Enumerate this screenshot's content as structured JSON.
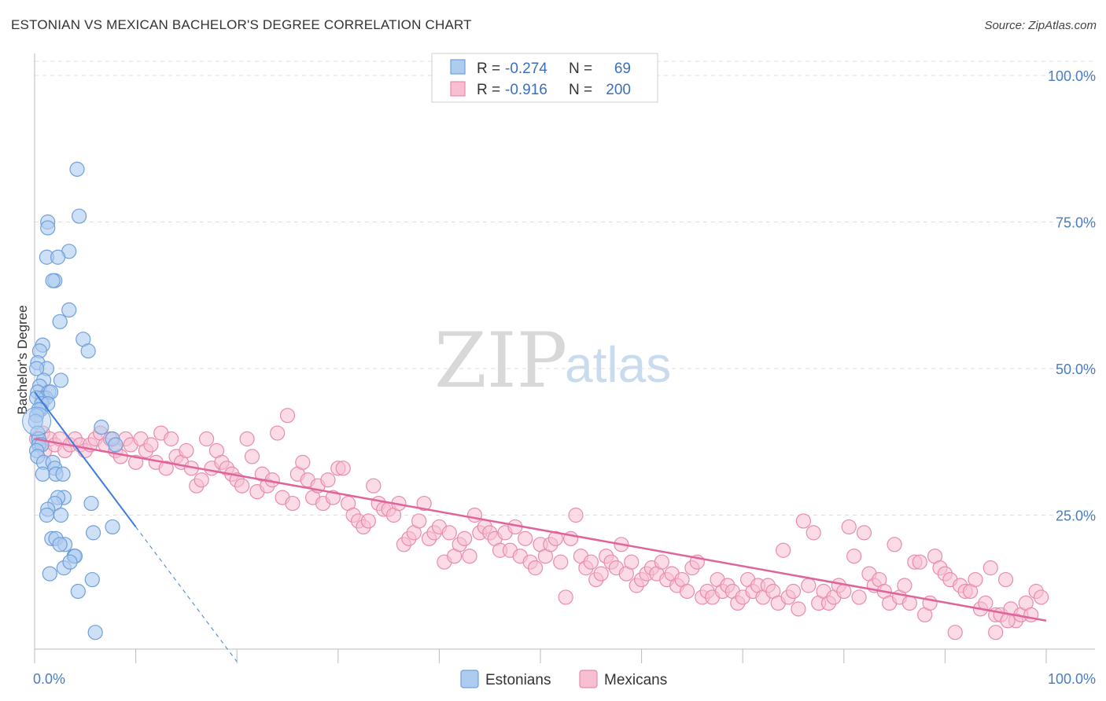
{
  "title": "ESTONIAN VS MEXICAN BACHELOR'S DEGREE CORRELATION CHART",
  "source": "Source: ZipAtlas.com",
  "watermark": {
    "zip": "ZIP",
    "atlas": "atlas"
  },
  "colors": {
    "estonian_fill": "#aecbf0",
    "estonian_stroke": "#6f9fdb",
    "estonian_line": "#3b7dd8",
    "mexican_fill": "#f7bfd1",
    "mexican_stroke": "#e98bab",
    "mexican_line": "#e0649a",
    "grid": "#dddddd"
  },
  "legend": {
    "rows": [
      {
        "r_label": "R = ",
        "r_value": "-0.274",
        "n_label": "N = ",
        "n_value": "69"
      },
      {
        "r_label": "R = ",
        "r_value": "-0.916",
        "n_label": "N = ",
        "n_value": "200"
      }
    ]
  },
  "bottom_legend": {
    "estonians": "Estonians",
    "mexicans": "Mexicans"
  },
  "chart_data": {
    "type": "scatter",
    "title": "ESTONIAN VS MEXICAN BACHELOR'S DEGREE CORRELATION CHART",
    "xlabel": "",
    "ylabel": "Bachelor's Degree",
    "xlim": [
      0,
      100
    ],
    "ylim": [
      0,
      100
    ],
    "x_tick_labels": [
      "0.0%",
      "100.0%"
    ],
    "y_tick_labels": [
      "100.0%",
      "75.0%",
      "50.0%",
      "25.0%"
    ],
    "y_tick_values": [
      100,
      75,
      50,
      25
    ],
    "grid": true,
    "series": [
      {
        "name": "Estonians",
        "R": -0.274,
        "N": 69,
        "trend": {
          "x0": 0,
          "y0": 46,
          "x1": 10,
          "y1": 23,
          "dash_to_x": 20
        },
        "points": [
          [
            4.2,
            84
          ],
          [
            4.4,
            76
          ],
          [
            1.3,
            75
          ],
          [
            1.3,
            74
          ],
          [
            3.4,
            70
          ],
          [
            1.2,
            69
          ],
          [
            2.3,
            69
          ],
          [
            2.0,
            65
          ],
          [
            1.8,
            65
          ],
          [
            3.4,
            60
          ],
          [
            2.5,
            58
          ],
          [
            4.8,
            55
          ],
          [
            5.3,
            53
          ],
          [
            0.8,
            54
          ],
          [
            0.5,
            53
          ],
          [
            0.3,
            51
          ],
          [
            1.2,
            50
          ],
          [
            0.2,
            50
          ],
          [
            0.9,
            48
          ],
          [
            2.6,
            48
          ],
          [
            0.5,
            47
          ],
          [
            0.3,
            46
          ],
          [
            1.4,
            46
          ],
          [
            0.8,
            45
          ],
          [
            1.1,
            45
          ],
          [
            1.6,
            46
          ],
          [
            0.2,
            45
          ],
          [
            0.7,
            44
          ],
          [
            1.3,
            44
          ],
          [
            0.6,
            43
          ],
          [
            0.4,
            43
          ],
          [
            0.2,
            42
          ],
          [
            0.1,
            41
          ],
          [
            6.6,
            40
          ],
          [
            0.3,
            39
          ],
          [
            0.4,
            38
          ],
          [
            7.7,
            38
          ],
          [
            0.4,
            37
          ],
          [
            0.7,
            37
          ],
          [
            0.2,
            36
          ],
          [
            8.0,
            37
          ],
          [
            0.3,
            35
          ],
          [
            0.9,
            34
          ],
          [
            1.8,
            34
          ],
          [
            2.0,
            33
          ],
          [
            0.8,
            32
          ],
          [
            2.1,
            32
          ],
          [
            2.8,
            32
          ],
          [
            2.9,
            28
          ],
          [
            2.3,
            28
          ],
          [
            2.0,
            27
          ],
          [
            5.6,
            27
          ],
          [
            1.3,
            26
          ],
          [
            1.2,
            25
          ],
          [
            2.6,
            25
          ],
          [
            7.7,
            23
          ],
          [
            5.8,
            22
          ],
          [
            1.7,
            21
          ],
          [
            2.1,
            21
          ],
          [
            3.0,
            20
          ],
          [
            2.5,
            20
          ],
          [
            3.9,
            18
          ],
          [
            4.0,
            18
          ],
          [
            2.9,
            16
          ],
          [
            1.5,
            15
          ],
          [
            5.7,
            14
          ],
          [
            4.3,
            12
          ],
          [
            6.0,
            5
          ],
          [
            3.5,
            17
          ]
        ]
      },
      {
        "name": "Mexicans",
        "R": -0.916,
        "N": 200,
        "trend": {
          "x0": 0,
          "y0": 38,
          "x1": 100,
          "y1": 7
        },
        "points": [
          [
            0.2,
            38
          ],
          [
            0.5,
            37
          ],
          [
            0.8,
            39
          ],
          [
            1.0,
            36
          ],
          [
            1.5,
            38
          ],
          [
            2.0,
            37
          ],
          [
            2.5,
            38
          ],
          [
            3.0,
            36
          ],
          [
            3.5,
            37
          ],
          [
            4.0,
            38
          ],
          [
            4.5,
            37
          ],
          [
            5.0,
            36
          ],
          [
            5.5,
            37
          ],
          [
            6.0,
            38
          ],
          [
            6.5,
            39
          ],
          [
            7.0,
            37
          ],
          [
            7.5,
            38
          ],
          [
            8.0,
            36
          ],
          [
            8.5,
            35
          ],
          [
            9.0,
            38
          ],
          [
            9.5,
            37
          ],
          [
            10.0,
            34
          ],
          [
            10.5,
            38
          ],
          [
            11.0,
            36
          ],
          [
            11.5,
            37
          ],
          [
            12.0,
            34
          ],
          [
            12.5,
            39
          ],
          [
            13.0,
            33
          ],
          [
            13.5,
            38
          ],
          [
            14.0,
            35
          ],
          [
            14.5,
            34
          ],
          [
            15.0,
            36
          ],
          [
            15.5,
            33
          ],
          [
            16.0,
            30
          ],
          [
            16.5,
            31
          ],
          [
            17.0,
            38
          ],
          [
            17.5,
            33
          ],
          [
            18.0,
            36
          ],
          [
            18.5,
            34
          ],
          [
            19.0,
            33
          ],
          [
            19.5,
            32
          ],
          [
            20.0,
            31
          ],
          [
            20.5,
            30
          ],
          [
            21.0,
            38
          ],
          [
            21.5,
            35
          ],
          [
            22.0,
            29
          ],
          [
            22.5,
            32
          ],
          [
            23.0,
            30
          ],
          [
            23.5,
            31
          ],
          [
            24.0,
            39
          ],
          [
            24.5,
            28
          ],
          [
            25.0,
            42
          ],
          [
            25.5,
            27
          ],
          [
            26.0,
            32
          ],
          [
            26.5,
            34
          ],
          [
            27.0,
            31
          ],
          [
            27.5,
            28
          ],
          [
            28.0,
            30
          ],
          [
            28.5,
            27
          ],
          [
            29.0,
            31
          ],
          [
            29.5,
            28
          ],
          [
            30.0,
            33
          ],
          [
            30.5,
            33
          ],
          [
            31.0,
            27
          ],
          [
            31.5,
            25
          ],
          [
            32.0,
            24
          ],
          [
            32.5,
            23
          ],
          [
            33.0,
            24
          ],
          [
            33.5,
            30
          ],
          [
            34.0,
            27
          ],
          [
            34.5,
            26
          ],
          [
            35.0,
            26
          ],
          [
            35.5,
            25
          ],
          [
            36.0,
            27
          ],
          [
            36.5,
            20
          ],
          [
            37.0,
            21
          ],
          [
            37.5,
            22
          ],
          [
            38.0,
            24
          ],
          [
            38.5,
            27
          ],
          [
            39.0,
            21
          ],
          [
            39.5,
            22
          ],
          [
            40.0,
            23
          ],
          [
            40.5,
            17
          ],
          [
            41.0,
            22
          ],
          [
            41.5,
            18
          ],
          [
            42.0,
            20
          ],
          [
            42.5,
            21
          ],
          [
            43.0,
            18
          ],
          [
            43.5,
            25
          ],
          [
            44.0,
            22
          ],
          [
            44.5,
            23
          ],
          [
            45.0,
            22
          ],
          [
            45.5,
            21
          ],
          [
            46.0,
            19
          ],
          [
            46.5,
            22
          ],
          [
            47.0,
            19
          ],
          [
            47.5,
            23
          ],
          [
            48.0,
            18
          ],
          [
            48.5,
            21
          ],
          [
            49.0,
            17
          ],
          [
            49.5,
            16
          ],
          [
            50.0,
            20
          ],
          [
            50.5,
            18
          ],
          [
            51.0,
            20
          ],
          [
            51.5,
            21
          ],
          [
            52.0,
            17
          ],
          [
            52.5,
            11
          ],
          [
            53.0,
            21
          ],
          [
            53.5,
            25
          ],
          [
            54.0,
            18
          ],
          [
            54.5,
            16
          ],
          [
            55.0,
            17
          ],
          [
            55.5,
            14
          ],
          [
            56.0,
            15
          ],
          [
            56.5,
            18
          ],
          [
            57.0,
            17
          ],
          [
            57.5,
            16
          ],
          [
            58.0,
            20
          ],
          [
            58.5,
            15
          ],
          [
            59.0,
            17
          ],
          [
            59.5,
            13
          ],
          [
            60.0,
            14
          ],
          [
            60.5,
            15
          ],
          [
            61.0,
            16
          ],
          [
            61.5,
            15
          ],
          [
            62.0,
            17
          ],
          [
            62.5,
            14
          ],
          [
            63.0,
            15
          ],
          [
            63.5,
            13
          ],
          [
            64.0,
            14
          ],
          [
            64.5,
            12
          ],
          [
            65.0,
            16
          ],
          [
            65.5,
            17
          ],
          [
            66.0,
            11
          ],
          [
            66.5,
            12
          ],
          [
            67.0,
            11
          ],
          [
            67.5,
            14
          ],
          [
            68.0,
            12
          ],
          [
            68.5,
            13
          ],
          [
            69.0,
            12
          ],
          [
            69.5,
            10
          ],
          [
            70.0,
            11
          ],
          [
            70.5,
            14
          ],
          [
            71.0,
            12
          ],
          [
            71.5,
            13
          ],
          [
            72.0,
            11
          ],
          [
            72.5,
            13
          ],
          [
            73.0,
            12
          ],
          [
            73.5,
            10
          ],
          [
            74.0,
            19
          ],
          [
            74.5,
            11
          ],
          [
            75.0,
            12
          ],
          [
            75.5,
            9
          ],
          [
            76.0,
            24
          ],
          [
            76.5,
            13
          ],
          [
            77.0,
            22
          ],
          [
            77.5,
            10
          ],
          [
            78.0,
            12
          ],
          [
            78.5,
            10
          ],
          [
            79.0,
            11
          ],
          [
            79.5,
            13
          ],
          [
            80.0,
            12
          ],
          [
            80.5,
            23
          ],
          [
            81.0,
            18
          ],
          [
            81.5,
            11
          ],
          [
            82.0,
            22
          ],
          [
            82.5,
            15
          ],
          [
            83.0,
            13
          ],
          [
            83.5,
            14
          ],
          [
            84.0,
            12
          ],
          [
            84.5,
            10
          ],
          [
            85.0,
            20
          ],
          [
            85.5,
            11
          ],
          [
            86.0,
            13
          ],
          [
            86.5,
            10
          ],
          [
            87.0,
            17
          ],
          [
            87.5,
            17
          ],
          [
            88.0,
            8
          ],
          [
            88.5,
            10
          ],
          [
            89.0,
            18
          ],
          [
            89.5,
            16
          ],
          [
            90.0,
            15
          ],
          [
            90.5,
            14
          ],
          [
            91.0,
            5
          ],
          [
            91.5,
            13
          ],
          [
            92.0,
            12
          ],
          [
            92.5,
            12
          ],
          [
            93.0,
            14
          ],
          [
            93.5,
            9
          ],
          [
            94.0,
            10
          ],
          [
            94.5,
            16
          ],
          [
            95.0,
            8
          ],
          [
            95.5,
            8
          ],
          [
            96.0,
            14
          ],
          [
            96.5,
            9
          ],
          [
            97.0,
            7
          ],
          [
            97.5,
            8
          ],
          [
            98.0,
            10
          ],
          [
            98.5,
            8
          ],
          [
            99.0,
            12
          ],
          [
            99.5,
            11
          ],
          [
            95.0,
            5
          ],
          [
            96.2,
            7
          ]
        ]
      }
    ]
  }
}
